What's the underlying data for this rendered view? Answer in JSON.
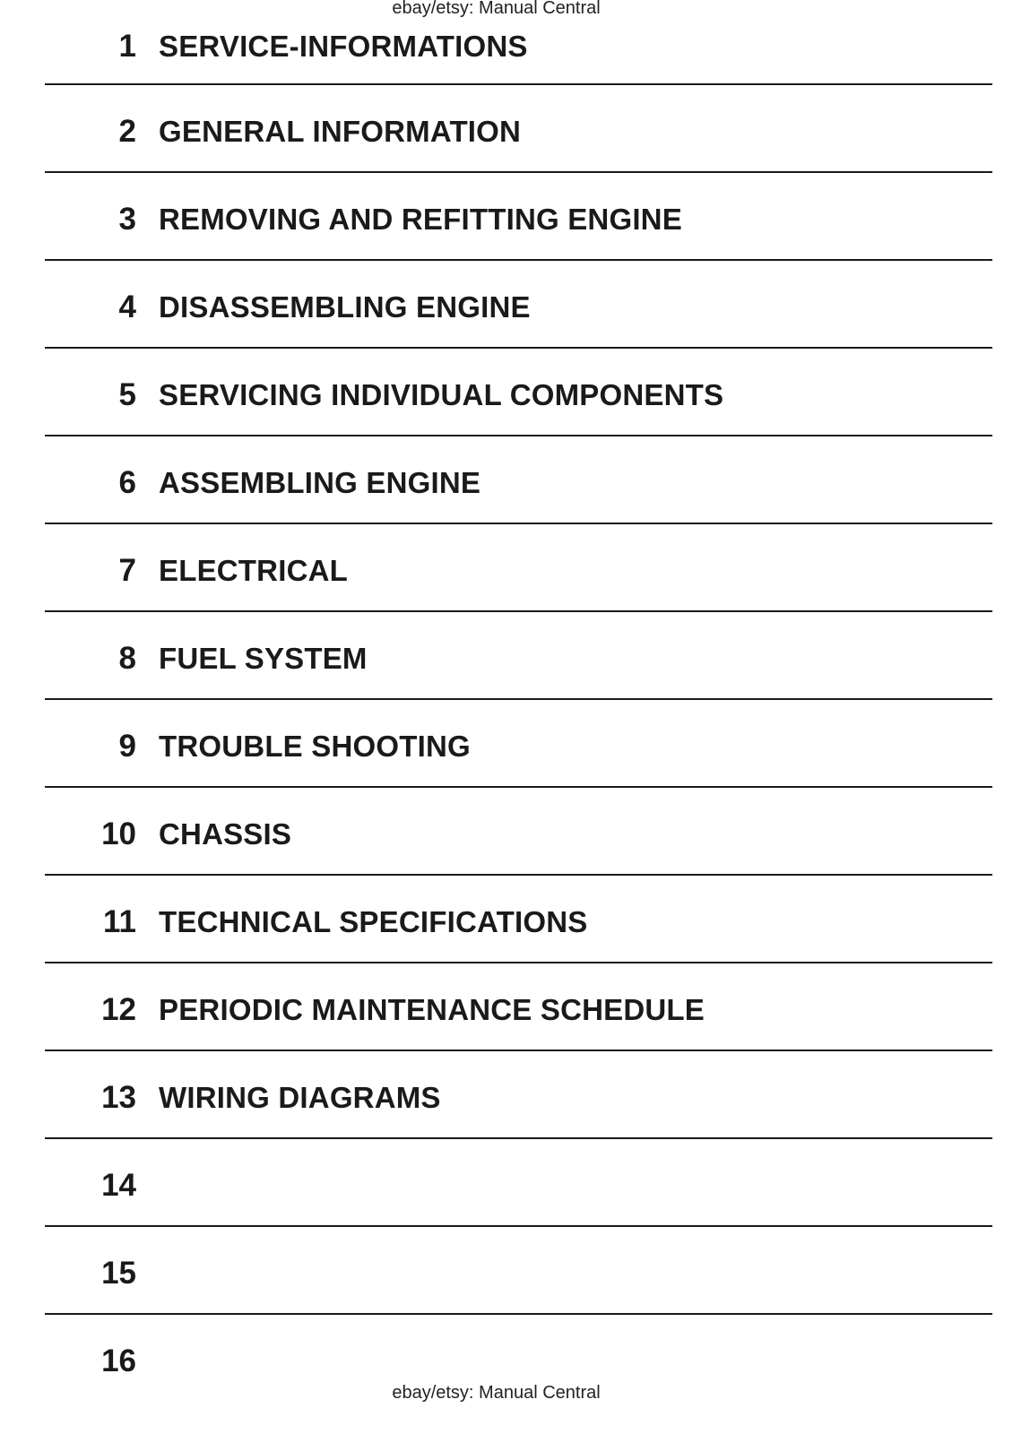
{
  "watermark_top": "ebay/etsy: Manual Central",
  "watermark_bottom": "ebay/etsy: Manual Central",
  "sections": [
    {
      "number": "1",
      "title": "SERVICE-INFORMATIONS"
    },
    {
      "number": "2",
      "title": "GENERAL INFORMATION"
    },
    {
      "number": "3",
      "title": "REMOVING AND REFITTING ENGINE"
    },
    {
      "number": "4",
      "title": "DISASSEMBLING ENGINE"
    },
    {
      "number": "5",
      "title": "SERVICING INDIVIDUAL COMPONENTS"
    },
    {
      "number": "6",
      "title": "ASSEMBLING ENGINE"
    },
    {
      "number": "7",
      "title": "ELECTRICAL"
    },
    {
      "number": "8",
      "title": "FUEL SYSTEM"
    },
    {
      "number": "9",
      "title": "TROUBLE SHOOTING"
    },
    {
      "number": "10",
      "title": "CHASSIS"
    },
    {
      "number": "11",
      "title": "TECHNICAL SPECIFICATIONS"
    },
    {
      "number": "12",
      "title": "PERIODIC MAINTENANCE SCHEDULE"
    },
    {
      "number": "13",
      "title": "WIRING DIAGRAMS"
    },
    {
      "number": "14",
      "title": ""
    },
    {
      "number": "15",
      "title": ""
    },
    {
      "number": "16",
      "title": ""
    }
  ]
}
